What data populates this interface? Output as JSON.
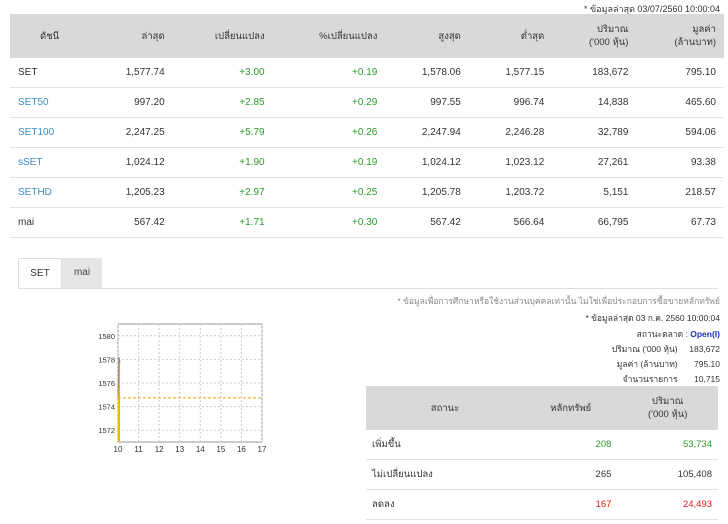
{
  "top_note": "* ข้อมูลล่าสุด 03/07/2560 10:00:04",
  "index_table": {
    "headers": [
      "ดัชนี",
      "ล่าสุด",
      "เปลี่ยนแปลง",
      "%เปลี่ยนแปลง",
      "สูงสุด",
      "ต่ำสุด",
      "ปริมาณ\n('000 หุ้น)",
      "มูลค่า\n(ล้านบาท)"
    ],
    "rows": [
      {
        "name": "SET",
        "last": "1,577.74",
        "chg": "+3.00",
        "pct": "+0.19",
        "high": "1,578.06",
        "low": "1,577.15",
        "vol": "183,672",
        "val": "795.10"
      },
      {
        "name": "SET50",
        "last": "997.20",
        "chg": "+2.85",
        "pct": "+0.29",
        "high": "997.55",
        "low": "996.74",
        "vol": "14,838",
        "val": "465.60"
      },
      {
        "name": "SET100",
        "last": "2,247.25",
        "chg": "+5.79",
        "pct": "+0.26",
        "high": "2,247.94",
        "low": "2,246.28",
        "vol": "32,789",
        "val": "594.06"
      },
      {
        "name": "sSET",
        "last": "1,024.12",
        "chg": "+1.90",
        "pct": "+0.19",
        "high": "1,024.12",
        "low": "1,023.12",
        "vol": "27,261",
        "val": "93.38"
      },
      {
        "name": "SETHD",
        "last": "1,205.23",
        "chg": "+2.97",
        "pct": "+0.25",
        "high": "1,205.78",
        "low": "1,203.72",
        "vol": "5,151",
        "val": "218.57"
      },
      {
        "name": "mai",
        "last": "567.42",
        "chg": "+1.71",
        "pct": "+0.30",
        "high": "567.42",
        "low": "566.64",
        "vol": "66,795",
        "val": "67.73"
      }
    ]
  },
  "tabs": {
    "set": "SET",
    "mai": "mai"
  },
  "info": {
    "disclaimer": "* ข้อมูลเพื่อการศึกษาหรือใช้งานส่วนบุคคลเท่านั้น ไม่ใช่เพื่อประกอบการซื้อขายหลักทรัพย์",
    "latest": "* ข้อมูลล่าสุด 03 ก.ค. 2560 10:00:04",
    "market_status_label": "สถานะตลาด :",
    "market_status": "Open(I)",
    "volume_label": "ปริมาณ ('000 หุ้น)",
    "volume": "183,672",
    "value_label": "มูลค่า (ล้านบาท)",
    "value": "795.10",
    "trades_label": "จำนวนรายการ",
    "trades": "10,715"
  },
  "stats_table": {
    "headers": [
      "สถานะ",
      "หลักทรัพย์",
      "ปริมาณ\n('000 หุ้น)"
    ],
    "rows": [
      {
        "label": "เพิ่มขึ้น",
        "count": "208",
        "volume": "53,734"
      },
      {
        "label": "ไม่เปลี่ยนแปลง",
        "count": "265",
        "volume": "105,408"
      },
      {
        "label": "ลดลง",
        "count": "167",
        "volume": "24,493"
      }
    ]
  },
  "chart_data": {
    "type": "area",
    "x_ticks": [
      "10",
      "11",
      "12",
      "13",
      "14",
      "15",
      "16",
      "17"
    ],
    "y_ticks": [
      "1580",
      "1578",
      "1576",
      "1574",
      "1572"
    ],
    "xlim": [
      10,
      17
    ],
    "ylim": [
      1571,
      1581
    ],
    "reference_line": 1574.74,
    "x": [
      10.0,
      10.05,
      10.1
    ],
    "values": [
      1574.8,
      1578.2,
      1577.74
    ],
    "colors": {
      "fill": "#f5b400",
      "ref": "#f5a000",
      "grid": "#cccccc"
    }
  }
}
